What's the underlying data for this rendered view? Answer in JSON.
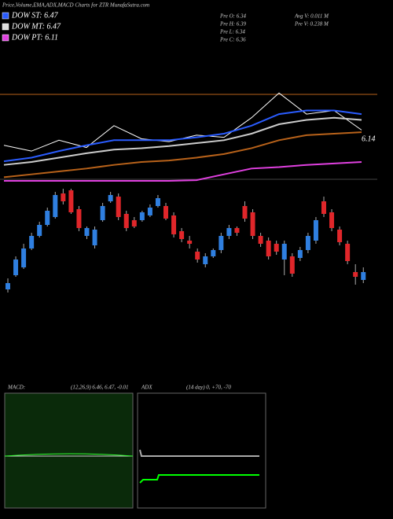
{
  "header": {
    "title": "Price,Volume,EMA,ADX,MACD Charts for ZTR MunafaSutra.com"
  },
  "legend": [
    {
      "label": "DOW ST: 6.47",
      "color": "#2a5cff"
    },
    {
      "label": "DOW MT: 6.47",
      "color": "#dddddd"
    },
    {
      "label": "DOW PT: 6.11",
      "color": "#e040e0"
    }
  ],
  "stats": [
    "Pre  O: 6.34",
    "Avg V: 0.011 M",
    "Pre  H: 6.39",
    "Pre  V: 0.238 M",
    "Pre  L: 6.34",
    "Pre  C: 6.36"
  ],
  "chart_data": [
    {
      "type": "line",
      "annotation": "6.14",
      "ylim": [
        5.6,
        6.9
      ],
      "series": [
        {
          "name": "Price",
          "color": "#ffffff",
          "values": [
            6.09,
            6.01,
            6.16,
            6.06,
            6.36,
            6.18,
            6.14,
            6.23,
            6.2,
            6.47,
            6.81,
            6.52,
            6.57,
            6.3
          ]
        },
        {
          "name": "DOW ST",
          "color": "#2a5cff",
          "values": [
            5.87,
            5.92,
            6.01,
            6.09,
            6.16,
            6.16,
            6.16,
            6.2,
            6.25,
            6.36,
            6.52,
            6.57,
            6.57,
            6.52
          ]
        },
        {
          "name": "DOW MT",
          "color": "#cccccc",
          "values": [
            5.82,
            5.86,
            5.92,
            5.98,
            6.03,
            6.05,
            6.08,
            6.12,
            6.16,
            6.25,
            6.38,
            6.44,
            6.47,
            6.44
          ]
        },
        {
          "name": "EMA",
          "color": "#b8621a",
          "values": [
            5.65,
            5.69,
            5.73,
            5.77,
            5.82,
            5.86,
            5.88,
            5.92,
            5.97,
            6.05,
            6.16,
            6.23,
            6.25,
            6.27
          ]
        },
        {
          "name": "DOW PT",
          "color": "#e040e0",
          "values": [
            5.6,
            5.6,
            5.6,
            5.6,
            5.6,
            5.6,
            5.6,
            5.61,
            5.69,
            5.77,
            5.79,
            5.82,
            5.84,
            5.86
          ]
        }
      ]
    },
    {
      "type": "candlestick",
      "ylim": [
        5.95,
        6.6
      ],
      "up_color": "#2f7fe0",
      "down_color": "#e0262a",
      "open": [
        5.96,
        6.05,
        6.1,
        6.22,
        6.3,
        6.37,
        6.42,
        6.57,
        6.59,
        6.47,
        6.3,
        6.24,
        6.4,
        6.52,
        6.55,
        6.44,
        6.4,
        6.4,
        6.43,
        6.49,
        6.49,
        6.43,
        6.33,
        6.27,
        6.2,
        6.12,
        6.17,
        6.21,
        6.3,
        6.35,
        6.49,
        6.45,
        6.3,
        6.27,
        6.25,
        6.15,
        6.17,
        6.16,
        6.21,
        6.27,
        6.52,
        6.45,
        6.34,
        6.25,
        6.07,
        6.02
      ],
      "high": [
        6.03,
        6.17,
        6.25,
        6.32,
        6.39,
        6.48,
        6.58,
        6.6,
        6.6,
        6.49,
        6.36,
        6.36,
        6.51,
        6.58,
        6.57,
        6.46,
        6.42,
        6.46,
        6.5,
        6.56,
        6.51,
        6.45,
        6.35,
        6.3,
        6.22,
        6.19,
        6.22,
        6.32,
        6.37,
        6.36,
        6.52,
        6.47,
        6.32,
        6.29,
        6.27,
        6.27,
        6.19,
        6.23,
        6.32,
        6.42,
        6.55,
        6.47,
        6.36,
        6.27,
        6.12,
        6.1
      ],
      "low": [
        5.94,
        6.04,
        6.09,
        6.21,
        6.29,
        6.36,
        6.41,
        6.5,
        6.44,
        6.33,
        6.28,
        6.22,
        6.39,
        6.51,
        6.4,
        6.33,
        6.35,
        6.39,
        6.42,
        6.48,
        6.4,
        6.29,
        6.26,
        6.22,
        6.13,
        6.1,
        6.16,
        6.19,
        6.28,
        6.3,
        6.39,
        6.28,
        6.23,
        6.15,
        6.18,
        6.05,
        6.04,
        6.14,
        6.19,
        6.25,
        6.42,
        6.33,
        6.24,
        6.12,
        5.99,
        6.0
      ],
      "close": [
        6.0,
        6.15,
        6.22,
        6.3,
        6.37,
        6.46,
        6.56,
        6.52,
        6.45,
        6.35,
        6.35,
        6.34,
        6.49,
        6.56,
        6.42,
        6.35,
        6.36,
        6.45,
        6.48,
        6.54,
        6.41,
        6.31,
        6.28,
        6.25,
        6.15,
        6.17,
        6.21,
        6.3,
        6.35,
        6.32,
        6.41,
        6.3,
        6.25,
        6.17,
        6.2,
        6.25,
        6.06,
        6.21,
        6.3,
        6.4,
        6.44,
        6.35,
        6.26,
        6.14,
        6.04,
        6.07
      ]
    }
  ],
  "macd": {
    "label": "MACD:",
    "params": "(12,26,9) 6.46, 6.47, -0.01"
  },
  "adx": {
    "label": "ADX",
    "params": "(14  day) 0, +70, -70"
  }
}
